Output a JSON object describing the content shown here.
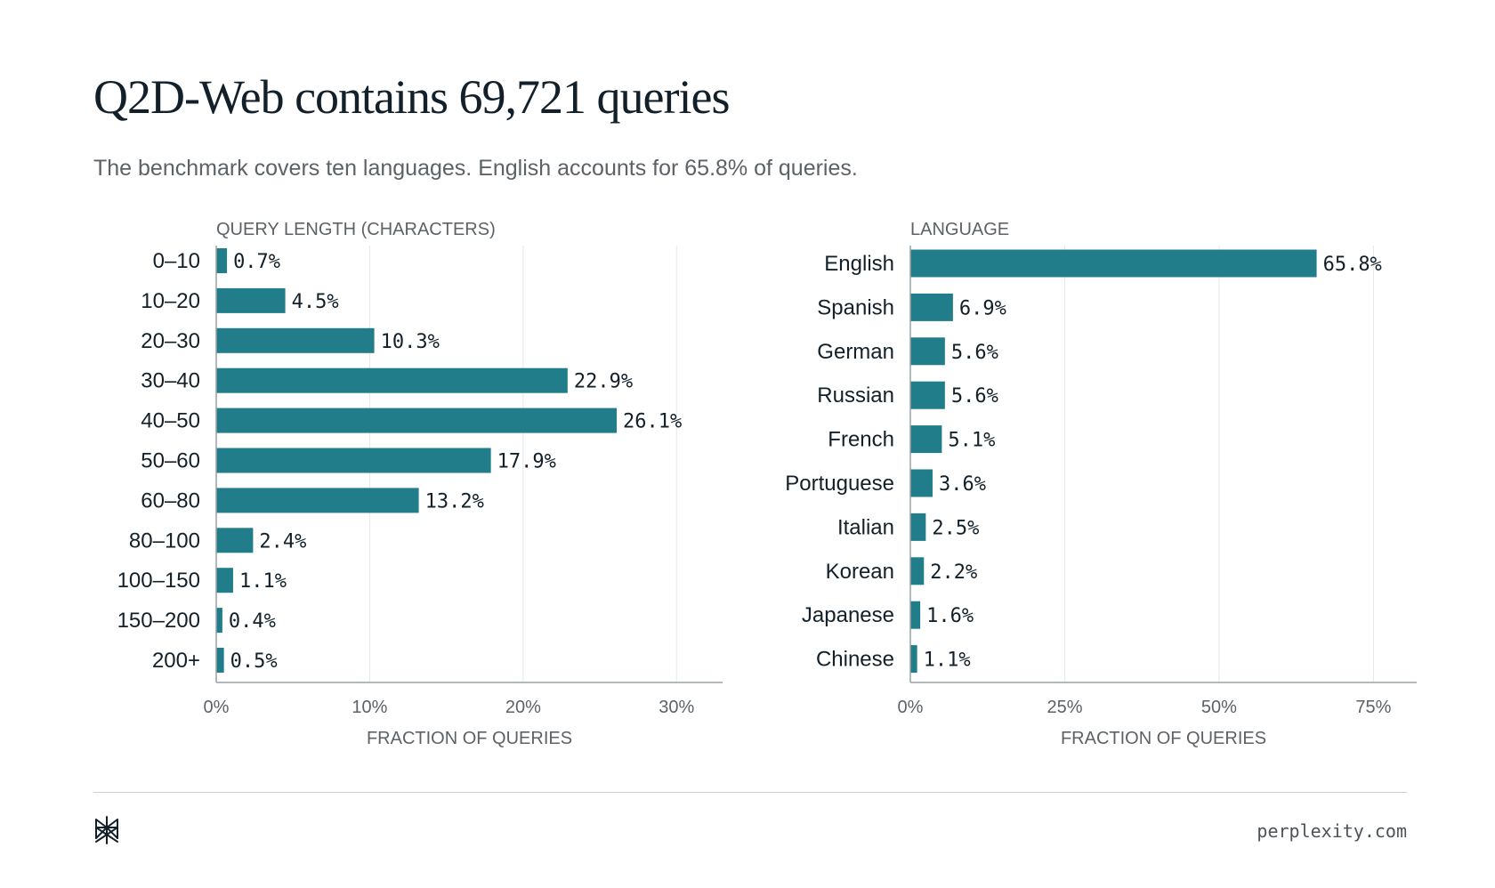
{
  "header": {
    "title": "Q2D-Web contains 69,721 queries",
    "subtitle": "The benchmark covers ten languages. English accounts for 65.8% of queries."
  },
  "footer": {
    "logo_icon": "perplexity-logo-icon",
    "url": "perplexity.com"
  },
  "colors": {
    "bar": "#217d89",
    "grid": "#e6e8e9",
    "axis": "#9aa0a3",
    "label": "#13202a",
    "muted": "#5c6266"
  },
  "chart_data": [
    {
      "type": "bar",
      "orientation": "horizontal",
      "title": "QUERY LENGTH (CHARACTERS)",
      "xlabel": "FRACTION OF QUERIES",
      "ylabel": "",
      "categories": [
        "0–10",
        "10–20",
        "20–30",
        "30–40",
        "40–50",
        "50–60",
        "60–80",
        "80–100",
        "100–150",
        "150–200",
        "200+"
      ],
      "values": [
        0.7,
        4.5,
        10.3,
        22.9,
        26.1,
        17.9,
        13.2,
        2.4,
        1.1,
        0.4,
        0.5
      ],
      "value_labels": [
        "0.7%",
        "4.5%",
        "10.3%",
        "22.9%",
        "26.1%",
        "17.9%",
        "13.2%",
        "2.4%",
        "1.1%",
        "0.4%",
        "0.5%"
      ],
      "xlim": [
        0,
        33
      ],
      "xticks": [
        0,
        10,
        20,
        30
      ],
      "xtick_labels": [
        "0%",
        "10%",
        "20%",
        "30%"
      ],
      "grid": true,
      "legend": "none"
    },
    {
      "type": "bar",
      "orientation": "horizontal",
      "title": "LANGUAGE",
      "xlabel": "FRACTION OF QUERIES",
      "ylabel": "",
      "categories": [
        "English",
        "Spanish",
        "German",
        "Russian",
        "French",
        "Portuguese",
        "Italian",
        "Korean",
        "Japanese",
        "Chinese"
      ],
      "values": [
        65.8,
        6.9,
        5.6,
        5.6,
        5.1,
        3.6,
        2.5,
        2.2,
        1.6,
        1.1
      ],
      "value_labels": [
        "65.8%",
        "6.9%",
        "5.6%",
        "5.6%",
        "5.1%",
        "3.6%",
        "2.5%",
        "2.2%",
        "1.6%",
        "1.1%"
      ],
      "xlim": [
        0,
        82
      ],
      "xticks": [
        0,
        25,
        50,
        75
      ],
      "xtick_labels": [
        "0%",
        "25%",
        "50%",
        "75%"
      ],
      "grid": true,
      "legend": "none"
    }
  ]
}
